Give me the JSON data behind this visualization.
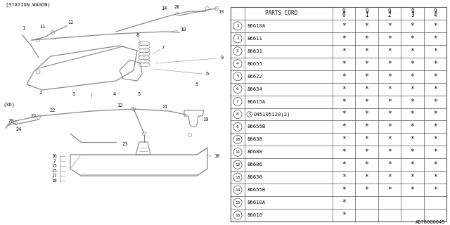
{
  "bg_color": "#ffffff",
  "line_color": "#555555",
  "text_color": "#111111",
  "table_parts": [
    {
      "num": "1",
      "code": "86610A",
      "stars": [
        1,
        1,
        1,
        1,
        1
      ]
    },
    {
      "num": "2",
      "code": "86611",
      "stars": [
        1,
        1,
        1,
        1,
        1
      ]
    },
    {
      "num": "3",
      "code": "86631",
      "stars": [
        1,
        1,
        1,
        1,
        1
      ]
    },
    {
      "num": "4",
      "code": "86655",
      "stars": [
        1,
        1,
        1,
        1,
        1
      ]
    },
    {
      "num": "5",
      "code": "86622",
      "stars": [
        1,
        1,
        1,
        1,
        1
      ]
    },
    {
      "num": "6",
      "code": "86634",
      "stars": [
        1,
        1,
        1,
        1,
        1
      ]
    },
    {
      "num": "7",
      "code": "86615A",
      "stars": [
        1,
        1,
        1,
        1,
        1
      ]
    },
    {
      "num": "8",
      "code": "S045105120(2)",
      "stars": [
        1,
        1,
        1,
        1,
        1
      ]
    },
    {
      "num": "9",
      "code": "86655B",
      "stars": [
        1,
        1,
        1,
        1,
        1
      ]
    },
    {
      "num": "10",
      "code": "86638",
      "stars": [
        1,
        1,
        1,
        1,
        1
      ]
    },
    {
      "num": "11",
      "code": "86688",
      "stars": [
        1,
        1,
        1,
        1,
        1
      ]
    },
    {
      "num": "12",
      "code": "86686",
      "stars": [
        1,
        1,
        1,
        1,
        1
      ]
    },
    {
      "num": "13",
      "code": "86636",
      "stars": [
        1,
        1,
        1,
        1,
        1
      ]
    },
    {
      "num": "14",
      "code": "86655B",
      "stars": [
        1,
        1,
        1,
        1,
        1
      ]
    },
    {
      "num": "15",
      "code": "86610A",
      "stars": [
        1,
        0,
        0,
        0,
        0
      ]
    },
    {
      "num": "16",
      "code": "86610",
      "stars": [
        1,
        0,
        0,
        0,
        0
      ]
    }
  ],
  "footer": "A876000045",
  "station_wagon_label": "(STATION WAGON)",
  "sedan_label": "(3D)"
}
